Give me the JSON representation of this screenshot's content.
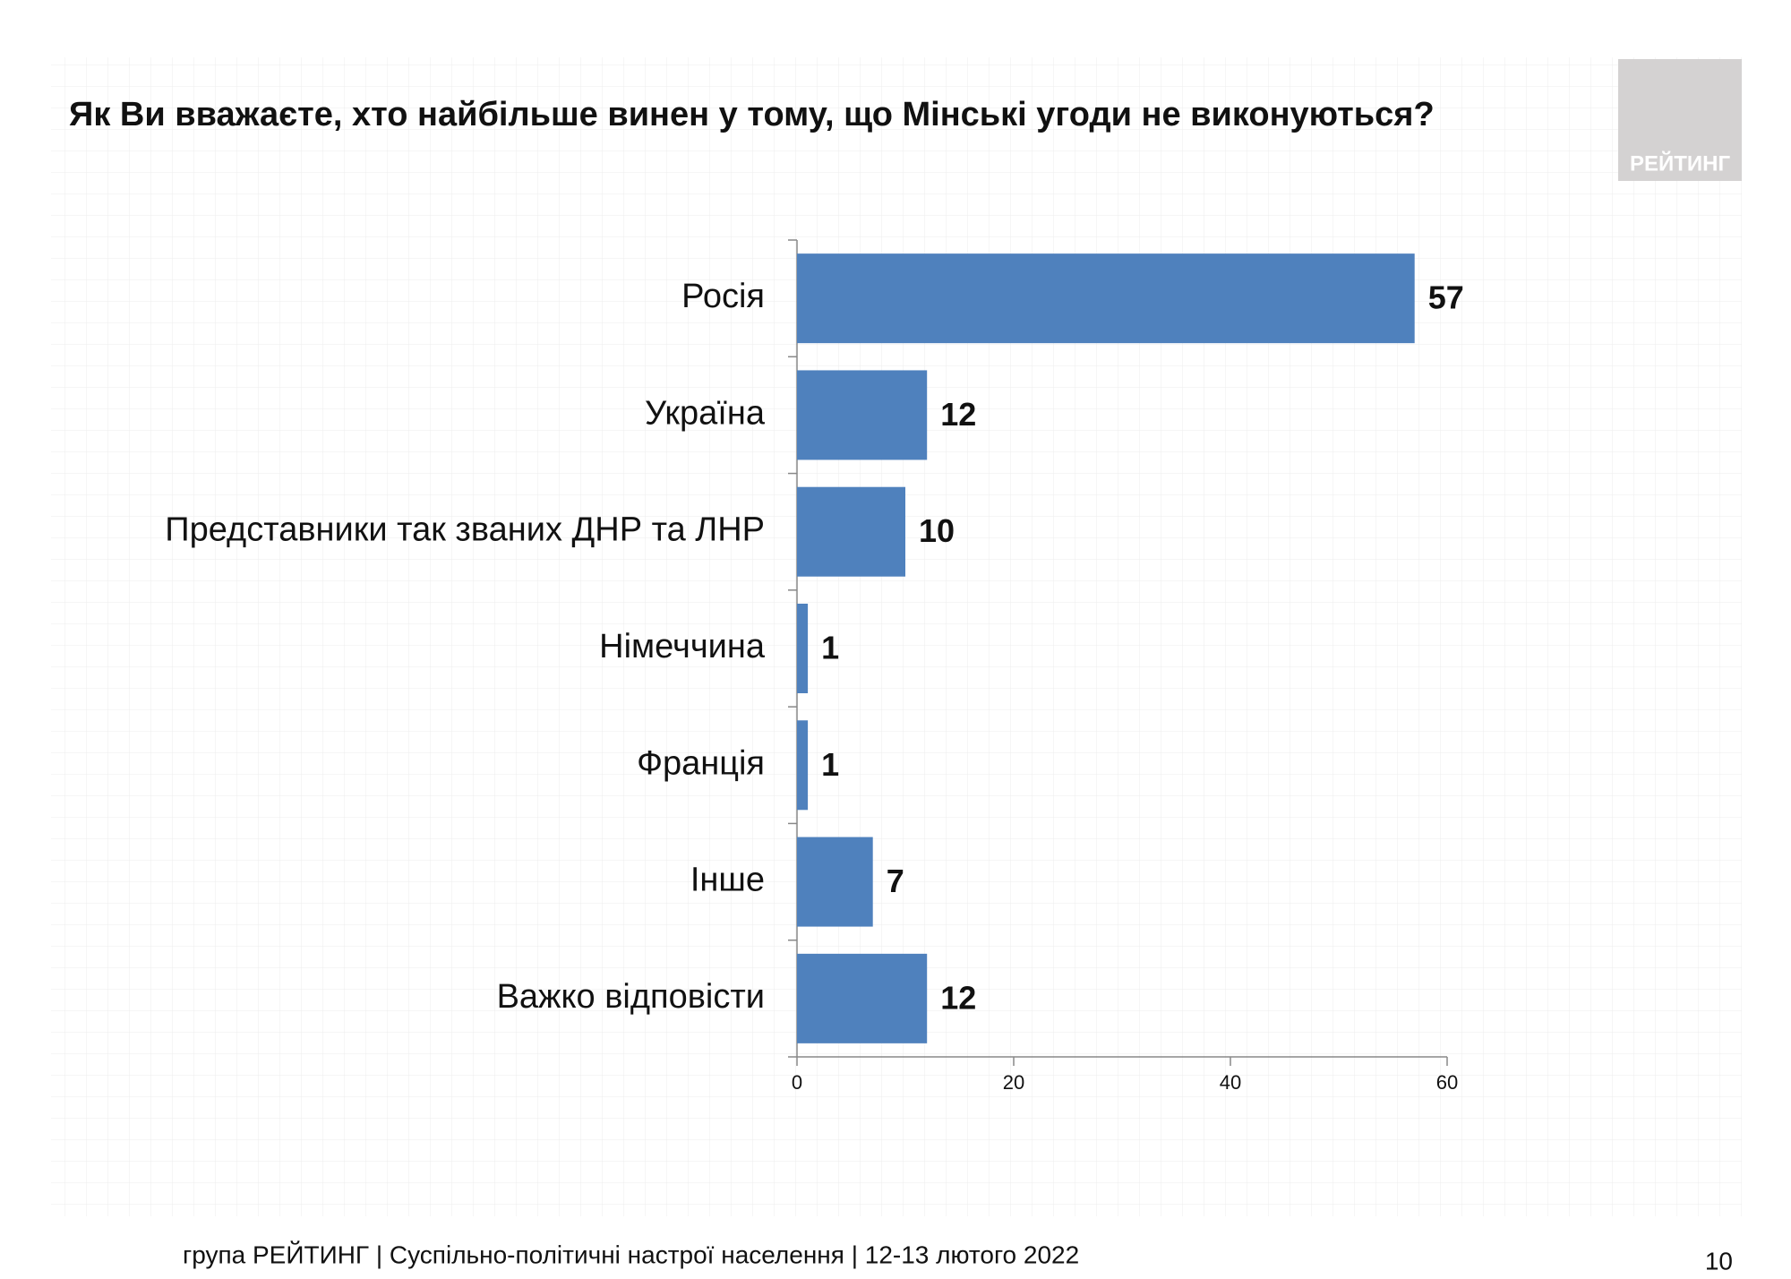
{
  "chart_data": {
    "type": "bar",
    "title": "Як Ви вважаєте, хто найбільше винен у тому, що Мінські угоди не виконуються?",
    "categories": [
      "Росія",
      "Україна",
      "Представники так званих ДНР та ЛНР",
      "Німеччина",
      "Франція",
      "Інше",
      "Важко відповісти"
    ],
    "values": [
      57,
      12,
      10,
      1,
      1,
      7,
      12
    ],
    "color": "#4f81bd",
    "xlim": [
      0,
      60
    ],
    "xticks": [
      0,
      20,
      40,
      60
    ]
  },
  "logo": "РЕЙТИНГ",
  "footer": "група РЕЙТИНГ | Суспільно-політичні настрої населення | 12-13 лютого 2022",
  "page_number": "10"
}
